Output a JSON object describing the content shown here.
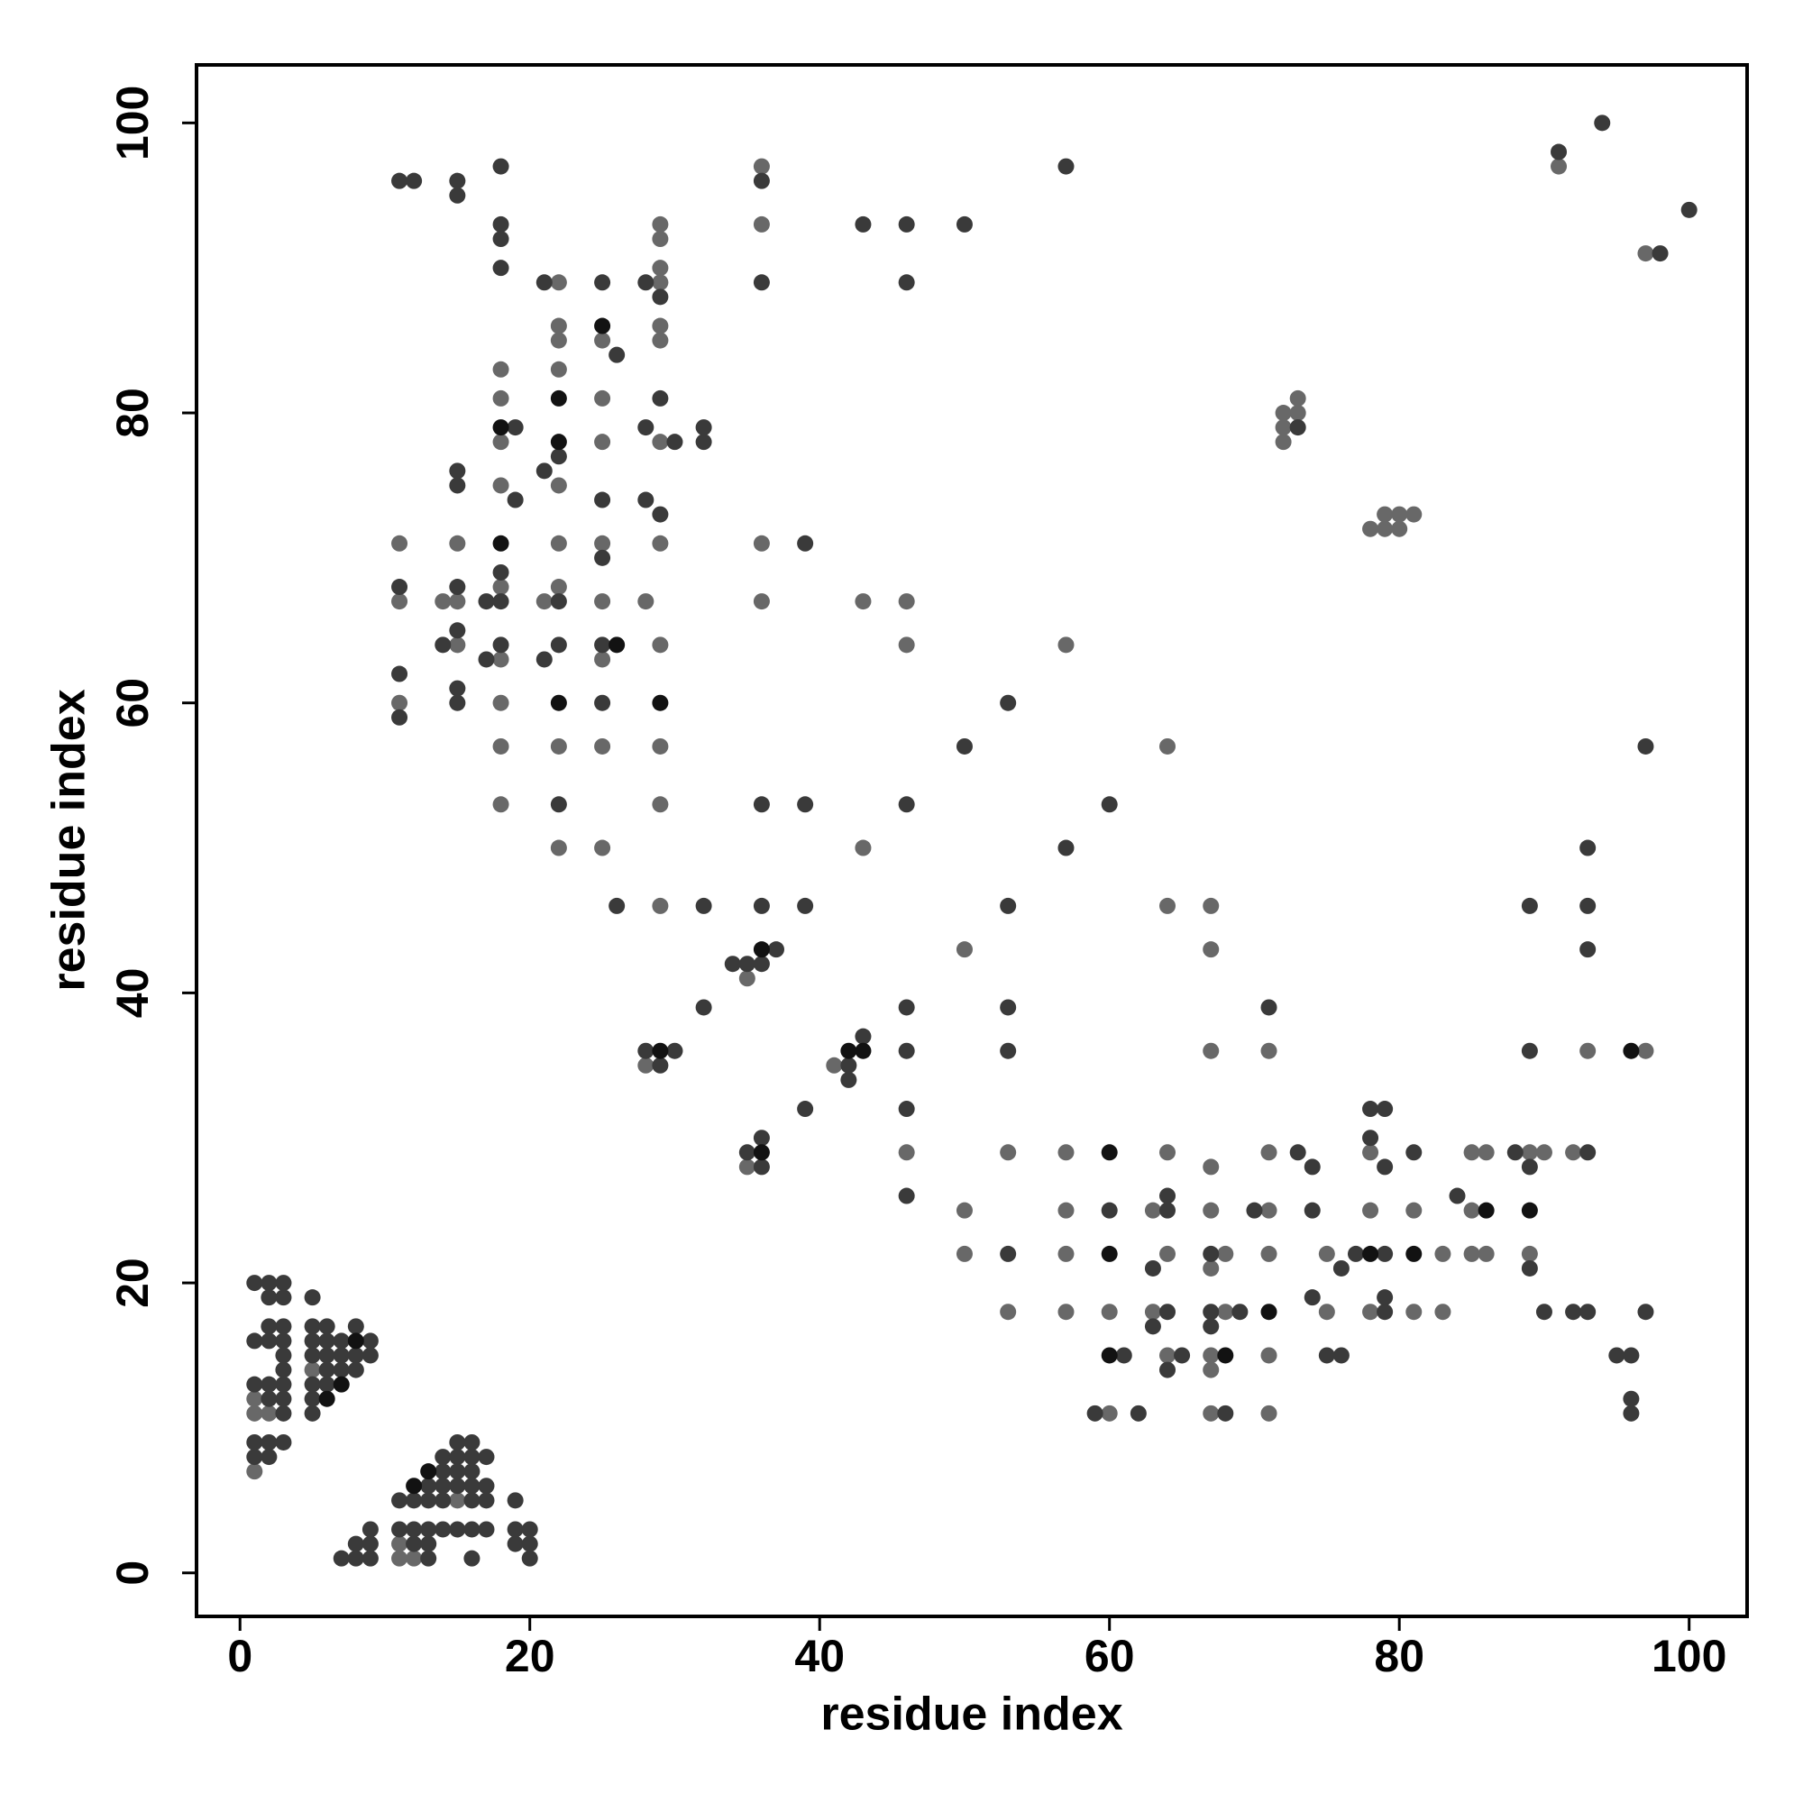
{
  "chart_data": {
    "type": "scatter",
    "xlabel": "residue index",
    "ylabel": "residue index",
    "xlim": [
      -3,
      104
    ],
    "ylim": [
      -3,
      104
    ],
    "xticks": [
      0,
      20,
      40,
      60,
      80,
      100
    ],
    "yticks": [
      0,
      20,
      40,
      60,
      80,
      100
    ],
    "grid": false,
    "series": [
      {
        "color": "#686868",
        "x": [
          1,
          1,
          1,
          2,
          5,
          11,
          11,
          12,
          15,
          11,
          11,
          11,
          14,
          15,
          15,
          15,
          18,
          18,
          18,
          18,
          18,
          18,
          18,
          18,
          18,
          21,
          22,
          22,
          22,
          22,
          22,
          22,
          22,
          22,
          22,
          25,
          25,
          25,
          25,
          25,
          25,
          25,
          25,
          28,
          28,
          29,
          29,
          29,
          29,
          29,
          29,
          29,
          29,
          29,
          29,
          29,
          29,
          35,
          35,
          36,
          36,
          36,
          36,
          41,
          43,
          43,
          46,
          46,
          46,
          50,
          50,
          50,
          53,
          53,
          57,
          57,
          57,
          57,
          57,
          60,
          60,
          63,
          63,
          64,
          64,
          64,
          64,
          64,
          67,
          67,
          67,
          67,
          67,
          67,
          67,
          67,
          67,
          68,
          68,
          71,
          71,
          71,
          71,
          71,
          71,
          72,
          72,
          72,
          73,
          73,
          75,
          75,
          78,
          78,
          78,
          78,
          79,
          79,
          80,
          80,
          81,
          81,
          81,
          83,
          83,
          85,
          85,
          85,
          86,
          86,
          89,
          89,
          90,
          91,
          92,
          93,
          97,
          97
        ],
        "y": [
          12,
          11,
          7,
          11,
          14,
          2,
          1,
          1,
          5,
          71,
          67,
          60,
          67,
          71,
          67,
          64,
          83,
          81,
          78,
          75,
          68,
          63,
          60,
          57,
          53,
          67,
          89,
          86,
          85,
          83,
          75,
          71,
          68,
          57,
          50,
          85,
          81,
          78,
          71,
          67,
          63,
          57,
          50,
          67,
          35,
          93,
          92,
          90,
          89,
          86,
          85,
          78,
          71,
          64,
          57,
          53,
          46,
          41,
          28,
          97,
          93,
          71,
          67,
          35,
          67,
          50,
          67,
          64,
          29,
          43,
          25,
          22,
          29,
          18,
          64,
          29,
          25,
          22,
          18,
          18,
          11,
          18,
          25,
          57,
          46,
          29,
          22,
          15,
          46,
          43,
          36,
          28,
          25,
          21,
          15,
          14,
          11,
          22,
          18,
          36,
          29,
          25,
          22,
          15,
          11,
          80,
          79,
          78,
          81,
          80,
          22,
          18,
          72,
          29,
          25,
          18,
          73,
          72,
          73,
          72,
          73,
          25,
          18,
          22,
          18,
          29,
          25,
          22,
          29,
          22,
          29,
          22,
          29,
          97,
          29,
          36,
          91,
          36
        ]
      },
      {
        "color": "#3a3a3a",
        "x": [
          1,
          1,
          1,
          1,
          1,
          2,
          2,
          2,
          2,
          2,
          2,
          2,
          2,
          3,
          3,
          3,
          3,
          3,
          3,
          3,
          3,
          3,
          3,
          5,
          5,
          5,
          5,
          5,
          5,
          5,
          6,
          6,
          6,
          6,
          6,
          7,
          7,
          7,
          8,
          8,
          8,
          9,
          9,
          7,
          8,
          8,
          9,
          9,
          9,
          11,
          11,
          12,
          12,
          12,
          13,
          13,
          13,
          13,
          13,
          14,
          14,
          14,
          14,
          14,
          15,
          15,
          15,
          15,
          15,
          16,
          16,
          16,
          16,
          16,
          16,
          16,
          17,
          17,
          17,
          17,
          19,
          19,
          19,
          20,
          20,
          20,
          11,
          11,
          11,
          11,
          12,
          14,
          15,
          15,
          15,
          15,
          15,
          15,
          15,
          15,
          17,
          17,
          18,
          18,
          18,
          18,
          18,
          18,
          18,
          19,
          19,
          21,
          21,
          21,
          22,
          22,
          22,
          22,
          25,
          25,
          25,
          25,
          25,
          26,
          26,
          28,
          28,
          28,
          28,
          29,
          29,
          29,
          29,
          30,
          30,
          32,
          32,
          32,
          32,
          34,
          35,
          35,
          36,
          36,
          36,
          36,
          36,
          36,
          36,
          37,
          39,
          39,
          39,
          39,
          42,
          42,
          43,
          43,
          46,
          46,
          46,
          46,
          46,
          46,
          46,
          50,
          50,
          53,
          53,
          53,
          53,
          53,
          57,
          57,
          59,
          60,
          60,
          61,
          62,
          63,
          63,
          64,
          64,
          64,
          64,
          65,
          67,
          67,
          67,
          68,
          69,
          70,
          71,
          73,
          73,
          74,
          74,
          74,
          75,
          76,
          76,
          77,
          78,
          78,
          79,
          79,
          79,
          79,
          79,
          81,
          84,
          88,
          89,
          89,
          89,
          89,
          90,
          91,
          92,
          93,
          93,
          93,
          93,
          93,
          94,
          95,
          96,
          96,
          96,
          97,
          97,
          98,
          100
        ],
        "y": [
          20,
          16,
          13,
          9,
          8,
          20,
          19,
          17,
          16,
          13,
          12,
          9,
          8,
          20,
          19,
          17,
          16,
          15,
          14,
          13,
          12,
          11,
          9,
          19,
          17,
          16,
          15,
          13,
          12,
          11,
          17,
          16,
          15,
          14,
          13,
          16,
          15,
          14,
          17,
          15,
          14,
          16,
          15,
          1,
          2,
          1,
          3,
          2,
          1,
          5,
          3,
          5,
          3,
          2,
          6,
          5,
          3,
          2,
          1,
          8,
          7,
          6,
          5,
          3,
          9,
          8,
          7,
          6,
          3,
          9,
          8,
          7,
          6,
          5,
          3,
          1,
          8,
          6,
          5,
          3,
          5,
          3,
          2,
          3,
          2,
          1,
          96,
          68,
          62,
          59,
          96,
          64,
          96,
          95,
          76,
          75,
          68,
          65,
          61,
          60,
          67,
          63,
          97,
          93,
          92,
          90,
          69,
          67,
          64,
          79,
          74,
          89,
          76,
          63,
          77,
          67,
          64,
          53,
          89,
          74,
          70,
          64,
          60,
          84,
          46,
          89,
          79,
          74,
          36,
          88,
          81,
          73,
          35,
          78,
          36,
          79,
          78,
          46,
          39,
          42,
          42,
          29,
          96,
          89,
          53,
          46,
          42,
          30,
          28,
          43,
          71,
          53,
          46,
          32,
          35,
          34,
          93,
          37,
          93,
          89,
          53,
          39,
          36,
          32,
          26,
          93,
          57,
          60,
          46,
          39,
          36,
          22,
          97,
          50,
          11,
          53,
          25,
          15,
          11,
          21,
          17,
          26,
          25,
          18,
          14,
          15,
          22,
          18,
          17,
          11,
          18,
          25,
          39,
          79,
          29,
          28,
          25,
          19,
          15,
          21,
          15,
          22,
          32,
          30,
          32,
          28,
          22,
          19,
          18,
          29,
          26,
          29,
          46,
          36,
          28,
          21,
          18,
          98,
          18,
          50,
          46,
          43,
          29,
          18,
          100,
          15,
          15,
          12,
          11,
          57,
          18,
          91,
          94
        ]
      },
      {
        "color": "#121212",
        "x": [
          6,
          7,
          8,
          12,
          13,
          18,
          18,
          22,
          22,
          22,
          25,
          26,
          29,
          29,
          36,
          36,
          42,
          43,
          60,
          60,
          60,
          68,
          71,
          78,
          81,
          86,
          89,
          96
        ],
        "y": [
          12,
          13,
          16,
          6,
          7,
          79,
          71,
          81,
          78,
          60,
          86,
          64,
          60,
          36,
          43,
          29,
          36,
          36,
          29,
          22,
          15,
          15,
          18,
          22,
          22,
          25,
          25,
          36
        ]
      }
    ]
  }
}
